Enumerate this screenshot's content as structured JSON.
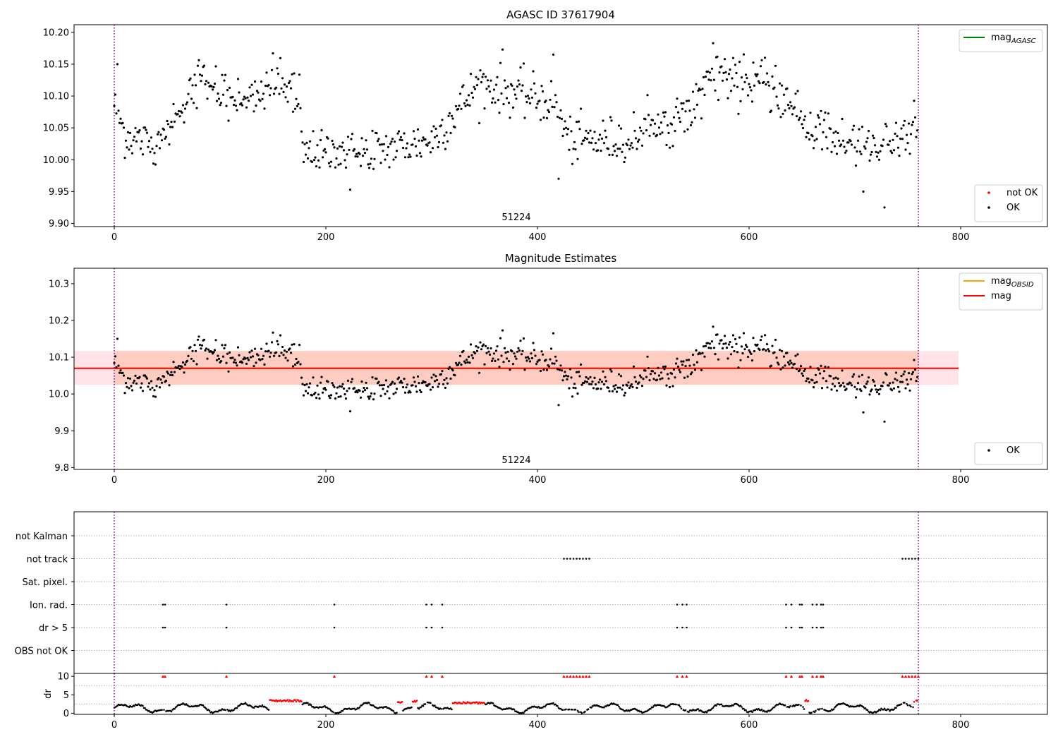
{
  "chart_data": [
    {
      "type": "scatter",
      "title": "AGASC ID 37617904",
      "xlabel": "",
      "ylabel": "",
      "xlim": [
        -38,
        882
      ],
      "ylim": [
        9.895,
        10.212
      ],
      "xticks": [
        0,
        200,
        400,
        600,
        800
      ],
      "yticks": [
        9.9,
        9.95,
        10.0,
        10.05,
        10.1,
        10.15,
        10.2
      ],
      "ytick_labels": [
        "9.90",
        "9.95",
        "10.00",
        "10.05",
        "10.10",
        "10.15",
        "10.20"
      ],
      "obsid_label": "51224",
      "obsid_label_x": 380,
      "obsid_boundaries": [
        0,
        760
      ],
      "n_points": 760,
      "trend_knots": [
        [
          0,
          10.09
        ],
        [
          10,
          10.04
        ],
        [
          40,
          10.02
        ],
        [
          80,
          10.13
        ],
        [
          120,
          10.09
        ],
        [
          150,
          10.12
        ],
        [
          176,
          10.09
        ],
        [
          178,
          10.01
        ],
        [
          230,
          10.01
        ],
        [
          300,
          10.03
        ],
        [
          345,
          10.12
        ],
        [
          415,
          10.09
        ],
        [
          430,
          10.03
        ],
        [
          470,
          10.03
        ],
        [
          520,
          10.05
        ],
        [
          580,
          10.14
        ],
        [
          630,
          10.1
        ],
        [
          650,
          10.06
        ],
        [
          700,
          10.02
        ],
        [
          760,
          10.04
        ]
      ],
      "noise_sd": 0.018,
      "outliers": [
        [
          3,
          10.15
        ],
        [
          223,
          9.953
        ],
        [
          420,
          9.97
        ],
        [
          708,
          9.95
        ],
        [
          728,
          9.925
        ],
        [
          566,
          10.183
        ],
        [
          367,
          10.173
        ],
        [
          150,
          10.167
        ],
        [
          415,
          10.165
        ]
      ],
      "series": [
        {
          "name": "mag_AGASC",
          "color": "#008000",
          "kind": "line"
        },
        {
          "name": "not OK",
          "color": "#ff0000",
          "kind": "points"
        },
        {
          "name": "OK",
          "color": "#000000",
          "kind": "points"
        }
      ],
      "legends": [
        {
          "placement": "top-right",
          "entries": [
            {
              "label": "mag",
              "sub": "AGASC",
              "kind": "line",
              "color": "#008000"
            }
          ]
        },
        {
          "placement": "bottom-right",
          "entries": [
            {
              "label": "not OK",
              "kind": "dot",
              "color": "#ff0000"
            },
            {
              "label": "OK",
              "kind": "dot",
              "color": "#000000"
            }
          ]
        }
      ]
    },
    {
      "type": "scatter",
      "title": "Magnitude Estimates",
      "xlabel": "",
      "ylabel": "",
      "xlim": [
        -38,
        882
      ],
      "ylim": [
        9.795,
        10.342
      ],
      "xticks": [
        0,
        200,
        400,
        600,
        800
      ],
      "yticks": [
        9.8,
        9.9,
        10.0,
        10.1,
        10.2,
        10.3
      ],
      "ytick_labels": [
        "9.8",
        "9.9",
        "10.0",
        "10.1",
        "10.2",
        "10.3"
      ],
      "obsid_label": "51224",
      "obsid_label_x": 380,
      "obsid_boundaries": [
        0,
        760
      ],
      "mag_obsid": 10.07,
      "mag_obsid_band": [
        10.025,
        10.117
      ],
      "mag": 10.07,
      "mag_band": [
        10.025,
        10.117
      ],
      "line_x_range": [
        -38,
        798
      ],
      "colors": {
        "mag_obsid": "#ffa500",
        "mag": "#ff0000",
        "mag_band_fill": "#ffc0cb",
        "obsid_band_fill": "#ffa07a"
      },
      "legends": [
        {
          "placement": "top-right",
          "entries": [
            {
              "label": "mag",
              "sub": "OBSID",
              "kind": "line",
              "color": "#ffa500"
            },
            {
              "label": "mag",
              "kind": "line",
              "color": "#ff0000"
            }
          ]
        },
        {
          "placement": "bottom-right",
          "entries": [
            {
              "label": "OK",
              "kind": "dot",
              "color": "#000000"
            }
          ]
        }
      ]
    },
    {
      "type": "scatter",
      "title": "",
      "xlabel": "",
      "ylabel": "",
      "xlim": [
        -38,
        882
      ],
      "flag_categories": [
        "not Kalman",
        "not track",
        "Sat. pixel.",
        "Ion. rad.",
        "dr > 5",
        "OBS not OK"
      ],
      "flag_events": {
        "not Kalman": [],
        "not track": [
          425,
          428,
          431,
          434,
          437,
          440,
          443,
          446,
          449,
          745,
          748,
          751,
          754,
          757,
          760
        ],
        "Sat. pixel.": [],
        "Ion. rad.": [
          46,
          48,
          106,
          208,
          295,
          300,
          310,
          532,
          537,
          541,
          635,
          640,
          648,
          650,
          660,
          664,
          668,
          670
        ],
        "dr > 5": [
          46,
          48,
          106,
          208,
          295,
          300,
          310,
          532,
          537,
          541,
          635,
          640,
          648,
          650,
          660,
          664,
          668,
          670
        ],
        "OBS not OK": []
      },
      "flag_dot_color": "#000000"
    },
    {
      "type": "scatter",
      "title": "",
      "xlabel": "",
      "ylabel": "dr",
      "xlim": [
        -38,
        882
      ],
      "ylim": [
        -0.3,
        10.8
      ],
      "xticks": [
        0,
        200,
        400,
        600,
        800
      ],
      "yticks": [
        0,
        5,
        10
      ],
      "ytick_labels": [
        "0",
        "5",
        "10"
      ],
      "clip_value": 10,
      "high_dr_segments": [
        [
          147,
          177,
          3.4
        ],
        [
          268,
          272,
          3.0
        ],
        [
          282,
          286,
          3.2
        ],
        [
          320,
          350,
          2.8
        ],
        [
          653,
          656,
          3.5
        ],
        [
          756,
          760,
          3.3
        ]
      ],
      "dr_outliers": [
        46,
        48,
        106,
        208,
        295,
        300,
        310,
        425,
        428,
        431,
        434,
        437,
        440,
        443,
        446,
        449,
        532,
        537,
        541,
        635,
        640,
        648,
        650,
        660,
        664,
        668,
        670,
        745,
        748,
        751,
        754,
        757,
        760
      ],
      "colors": {
        "ok": "#000000",
        "not_ok": "#ff0000"
      }
    }
  ]
}
